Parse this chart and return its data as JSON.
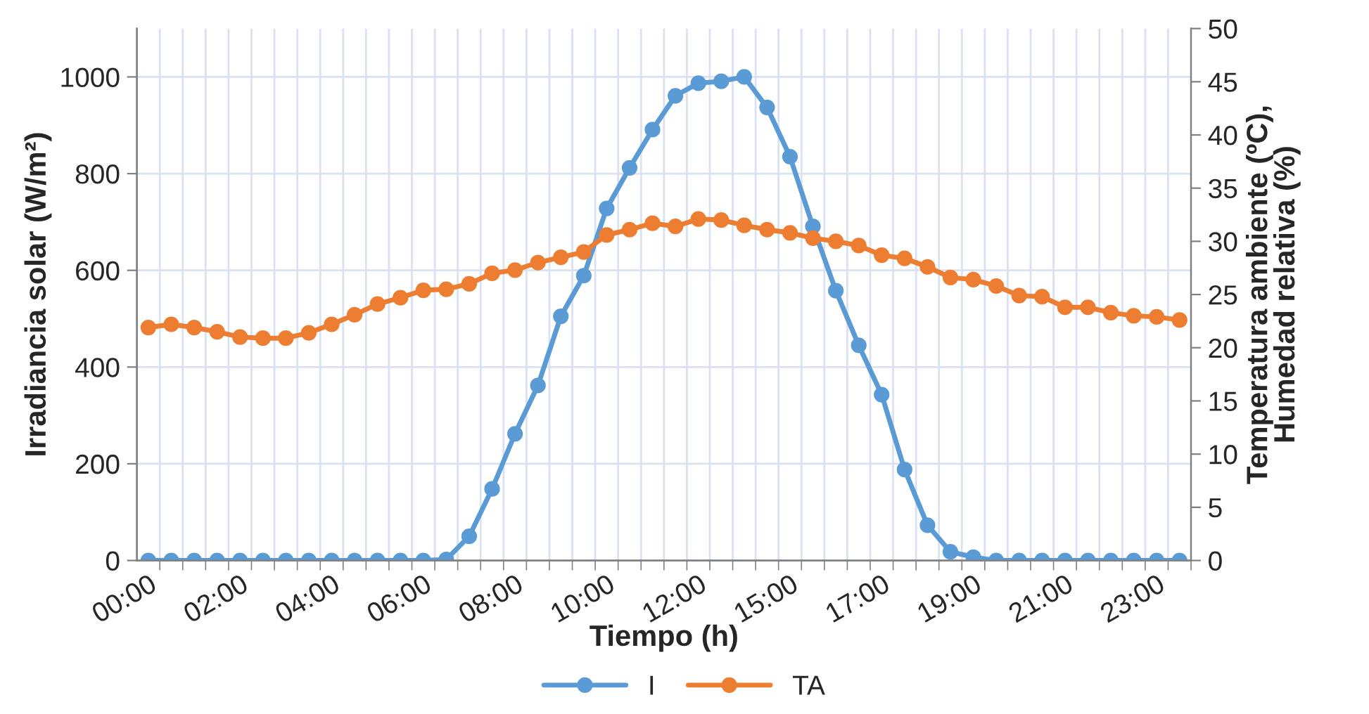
{
  "chart_data": {
    "type": "line",
    "xlabel": "Tiempo (h)",
    "ylabel": "Irradiancia solar (W/m²)",
    "y2label": "Temperatura ambiente (ºC),\nHumedad relativa (%)",
    "categories": [
      "00:00",
      null,
      null,
      null,
      "02:00",
      null,
      null,
      null,
      "04:00",
      null,
      null,
      null,
      "06:00",
      null,
      null,
      null,
      "08:00",
      null,
      null,
      null,
      "10:00",
      null,
      null,
      null,
      "12:00",
      null,
      null,
      null,
      "15:00",
      null,
      null,
      null,
      "17:00",
      null,
      null,
      null,
      "19:00",
      null,
      null,
      null,
      "21:00",
      null,
      null,
      null,
      "23:00",
      null
    ],
    "series": [
      {
        "name": "I",
        "color": "#5b9bd5",
        "values": [
          0,
          0,
          0,
          0,
          0,
          0,
          0,
          0,
          0,
          0,
          0,
          0,
          0,
          2,
          50,
          148,
          262,
          362,
          505,
          589,
          728,
          812,
          891,
          961,
          987,
          991,
          1000,
          937,
          835,
          691,
          558,
          445,
          343,
          188,
          73,
          18,
          7,
          0,
          0,
          0,
          0,
          0,
          0,
          0,
          0,
          0
        ]
      },
      {
        "name": "TA",
        "color": "#ed7d31",
        "axis": "y2",
        "values": [
          21.9,
          22.2,
          21.9,
          21.5,
          21.0,
          20.9,
          20.9,
          21.4,
          22.2,
          23.1,
          24.1,
          24.7,
          25.4,
          25.5,
          26.0,
          27.0,
          27.3,
          28.0,
          28.5,
          29.0,
          30.6,
          31.1,
          31.7,
          31.4,
          32.1,
          32.0,
          31.5,
          31.1,
          30.8,
          30.3,
          30.0,
          29.6,
          28.7,
          28.4,
          27.6,
          26.6,
          26.4,
          25.8,
          24.9,
          24.8,
          23.8,
          23.8,
          23.3,
          23.0,
          22.9,
          22.6
        ]
      }
    ],
    "ylim": [
      0,
      1100
    ],
    "yticks": [
      0,
      200,
      400,
      600,
      800,
      1000
    ],
    "y2lim": [
      0,
      50
    ],
    "y2ticks": [
      0,
      5,
      10,
      15,
      20,
      25,
      30,
      35,
      40,
      45,
      50
    ],
    "grid": true,
    "legend": "bottom",
    "marker": "circle",
    "line_style": "solid"
  }
}
